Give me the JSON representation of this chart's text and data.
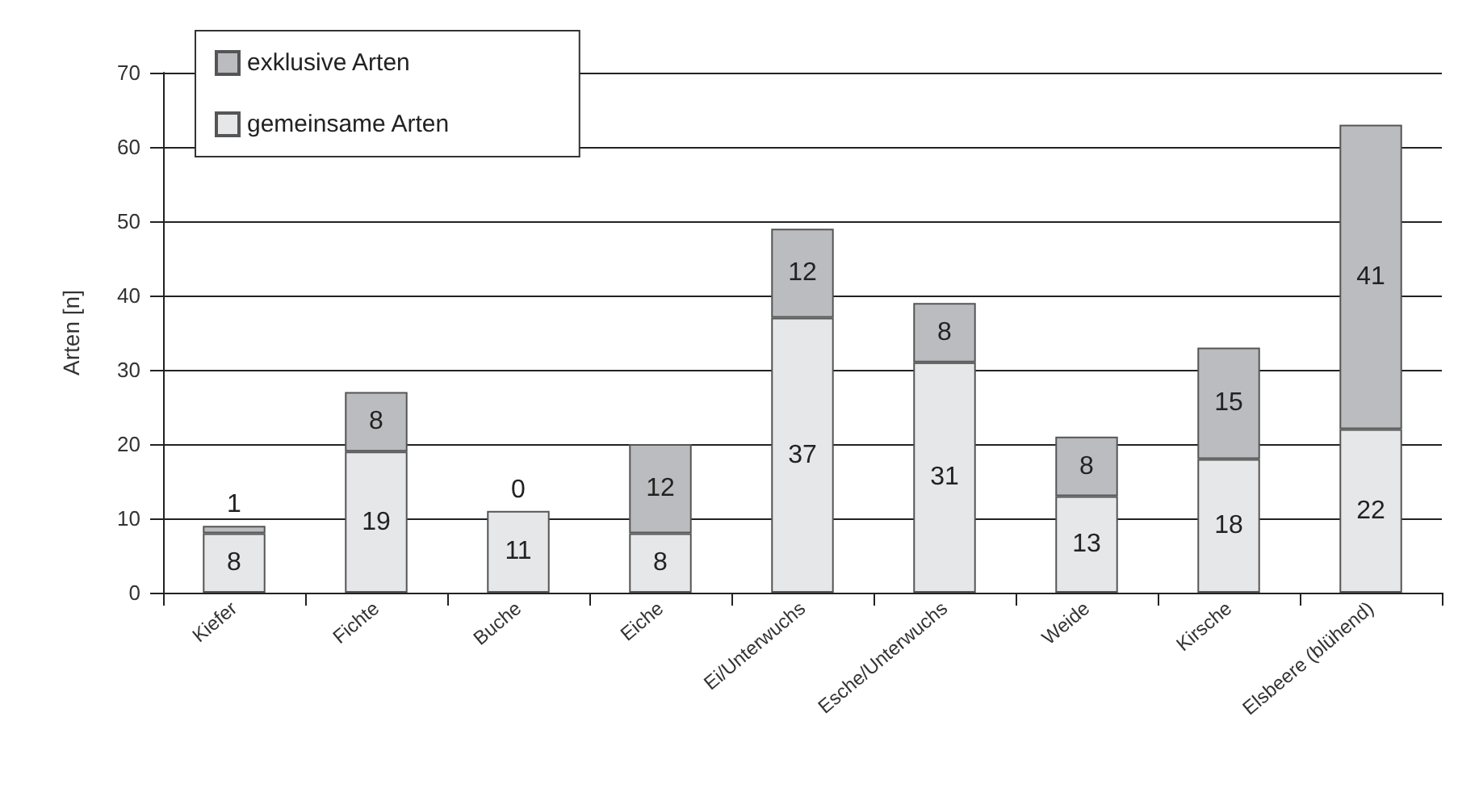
{
  "chart_data": {
    "type": "bar",
    "stacked": true,
    "ylabel": "Arten [n]",
    "categories": [
      "Kiefer",
      "Fichte",
      "Buche",
      "Eiche",
      "Ei/Unterwuchs",
      "Esche/Unterwuchs",
      "Weide",
      "Kirsche",
      "Elsbeere (blühend)"
    ],
    "series": [
      {
        "name": "gemeinsame Arten",
        "color": "#e6e7e9",
        "values": [
          8,
          19,
          11,
          8,
          37,
          31,
          13,
          18,
          22
        ]
      },
      {
        "name": "exklusive Arten",
        "color": "#bbbcc0",
        "values": [
          1,
          8,
          0,
          12,
          12,
          8,
          8,
          15,
          41
        ]
      }
    ],
    "ylim": [
      0,
      70
    ],
    "yticks": [
      0,
      10,
      20,
      30,
      40,
      50,
      60,
      70
    ],
    "grid": "y",
    "legend": "top left",
    "data_labels": true
  }
}
